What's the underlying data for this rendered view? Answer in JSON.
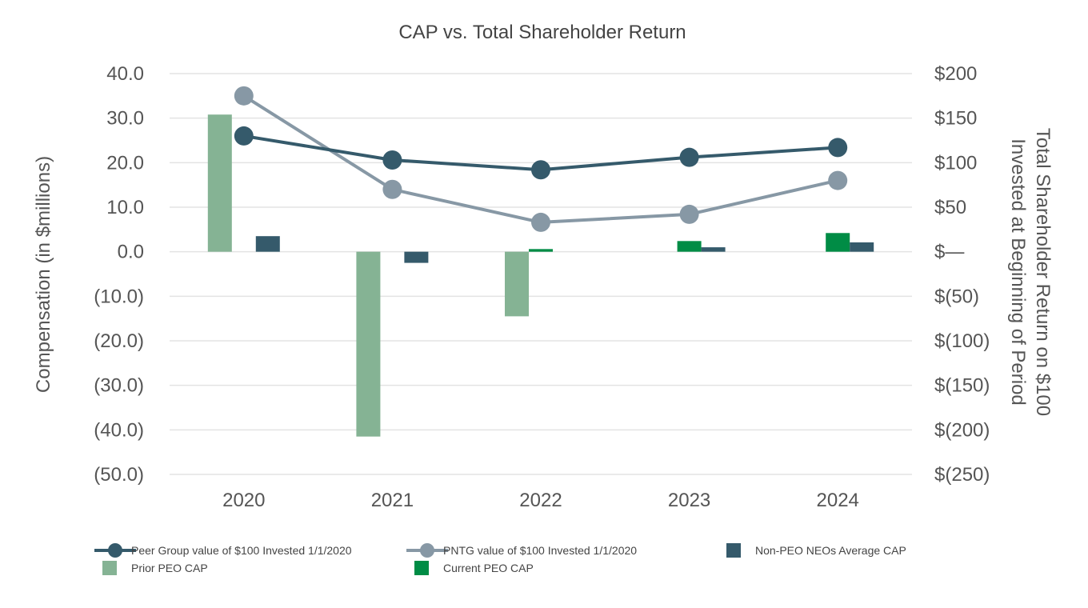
{
  "chart_data": {
    "type": "bar",
    "title": "CAP vs. Total Shareholder Return",
    "categories": [
      "2020",
      "2021",
      "2022",
      "2023",
      "2024"
    ],
    "ylabel_left": "Compensation (in $millions)",
    "ylabel_right_line1": "Total Shareholder Return on $100",
    "ylabel_right_line2": "Invested at Beginning of Period",
    "ylim_left": [
      -50,
      40
    ],
    "ylim_right": [
      -250,
      200
    ],
    "left_ticks": [
      {
        "value": 40,
        "label": "40.0"
      },
      {
        "value": 30,
        "label": "30.0"
      },
      {
        "value": 20,
        "label": "20.0"
      },
      {
        "value": 10,
        "label": "10.0"
      },
      {
        "value": 0,
        "label": "0.0"
      },
      {
        "value": -10,
        "label": "(10.0)"
      },
      {
        "value": -20,
        "label": "(20.0)"
      },
      {
        "value": -30,
        "label": "(30.0)"
      },
      {
        "value": -40,
        "label": "(40.0)"
      },
      {
        "value": -50,
        "label": "(50.0)"
      }
    ],
    "right_ticks": [
      {
        "value": 200,
        "label": "$200"
      },
      {
        "value": 150,
        "label": "$150"
      },
      {
        "value": 100,
        "label": "$100"
      },
      {
        "value": 50,
        "label": "$50"
      },
      {
        "value": 0,
        "label": "$—"
      },
      {
        "value": -50,
        "label": "$(50)"
      },
      {
        "value": -100,
        "label": "$(100)"
      },
      {
        "value": -150,
        "label": "$(150)"
      },
      {
        "value": -200,
        "label": "$(200)"
      },
      {
        "value": -250,
        "label": "$(250)"
      }
    ],
    "bar_series": [
      {
        "name": "Prior PEO CAP",
        "color": "#85b394",
        "values": [
          30.8,
          -41.5,
          -14.5,
          null,
          null
        ]
      },
      {
        "name": "Current PEO CAP",
        "color": "#008c45",
        "values": [
          null,
          null,
          0.6,
          2.4,
          4.2
        ]
      },
      {
        "name": "Non-PEO NEOs Average CAP",
        "color": "#355a6b",
        "values": [
          3.5,
          -2.5,
          null,
          1.0,
          2.1
        ]
      }
    ],
    "line_series": [
      {
        "name": "Peer Group value of $100 Invested 1/1/2020",
        "color": "#355a6b",
        "axis": "right",
        "values": [
          130,
          103,
          92,
          106,
          117
        ]
      },
      {
        "name": "PNTG value of $100 Invested 1/1/2020",
        "color": "#8798a5",
        "axis": "right",
        "values": [
          175,
          70,
          33,
          42,
          80
        ]
      }
    ],
    "legend": [
      {
        "key": "line-peer",
        "label": "Peer Group value of $100 Invested 1/1/2020",
        "kind": "line",
        "color": "#355a6b"
      },
      {
        "key": "line-pntg",
        "label": "PNTG value of $100 Invested 1/1/2020",
        "kind": "line",
        "color": "#8798a5"
      },
      {
        "key": "bar-nonpeo",
        "label": "Non-PEO NEOs Average CAP",
        "kind": "square",
        "color": "#355a6b"
      },
      {
        "key": "bar-prior",
        "label": "Prior PEO CAP",
        "kind": "square",
        "color": "#85b394"
      },
      {
        "key": "bar-current",
        "label": "Current PEO CAP",
        "kind": "square",
        "color": "#008c45"
      }
    ],
    "legend_position": "bottom",
    "grid": true
  }
}
